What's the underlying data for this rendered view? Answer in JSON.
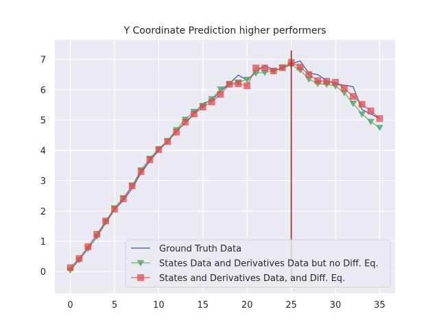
{
  "chart_data": {
    "type": "line",
    "title": "Y Coordinate Prediction higher performers",
    "xlabel": "",
    "ylabel": "",
    "xlim": [
      -1.75,
      36.75
    ],
    "ylim": [
      -0.72,
      7.65
    ],
    "x_ticks": [
      0,
      5,
      10,
      15,
      20,
      25,
      30,
      35
    ],
    "y_ticks": [
      0,
      1,
      2,
      3,
      4,
      5,
      6,
      7
    ],
    "grid": true,
    "legend_position": "lower-right",
    "vertical_marker": {
      "x": 25,
      "y_from": -0.3,
      "y_to": 7.3,
      "color": "#a61c1c"
    },
    "x": [
      0,
      1,
      2,
      3,
      4,
      5,
      6,
      7,
      8,
      9,
      10,
      11,
      12,
      13,
      14,
      15,
      16,
      17,
      18,
      19,
      20,
      21,
      22,
      23,
      24,
      25,
      26,
      27,
      28,
      29,
      30,
      31,
      32,
      33,
      34,
      35
    ],
    "series": [
      {
        "name": "Ground Truth Data",
        "color": "#4c72b0",
        "marker": "none",
        "values": [
          0.05,
          0.4,
          0.75,
          1.15,
          1.6,
          2.05,
          2.35,
          2.75,
          3.25,
          3.65,
          4.0,
          4.3,
          4.65,
          4.9,
          5.2,
          5.55,
          5.65,
          5.95,
          6.2,
          6.48,
          6.32,
          6.6,
          6.8,
          6.65,
          6.7,
          6.85,
          6.95,
          6.55,
          6.5,
          6.3,
          6.2,
          6.15,
          6.1,
          5.35,
          5.2,
          5.05
        ]
      },
      {
        "name": "States Data and Derivatives Data but no Diff. Eq.",
        "color": "#55a868",
        "marker": "triangle-down",
        "values": [
          0.05,
          0.38,
          0.76,
          1.16,
          1.65,
          2.1,
          2.43,
          2.83,
          3.35,
          3.73,
          4.05,
          4.32,
          4.68,
          5.02,
          5.28,
          5.48,
          5.7,
          6.02,
          6.2,
          6.25,
          6.34,
          6.55,
          6.57,
          6.62,
          6.72,
          6.82,
          6.65,
          6.35,
          6.2,
          6.18,
          6.12,
          5.9,
          5.55,
          5.2,
          4.95,
          4.75
        ]
      },
      {
        "name": "States and Derivatives Data, and Diff. Eq.",
        "color": "#e24a4a",
        "marker": "square",
        "values": [
          0.13,
          0.43,
          0.82,
          1.23,
          1.67,
          2.06,
          2.4,
          2.83,
          3.3,
          3.69,
          4.02,
          4.29,
          4.6,
          4.93,
          5.2,
          5.43,
          5.6,
          5.85,
          6.18,
          6.2,
          6.13,
          6.72,
          6.72,
          6.62,
          6.73,
          6.9,
          6.75,
          6.5,
          6.3,
          6.28,
          6.25,
          6.05,
          5.78,
          5.52,
          5.3,
          5.05
        ]
      }
    ]
  }
}
